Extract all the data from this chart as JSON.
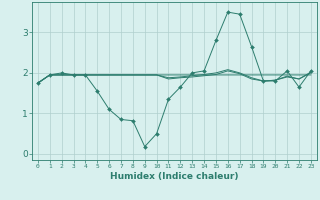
{
  "xlabel": "Humidex (Indice chaleur)",
  "x": [
    0,
    1,
    2,
    3,
    4,
    5,
    6,
    7,
    8,
    9,
    10,
    11,
    12,
    13,
    14,
    15,
    16,
    17,
    18,
    19,
    20,
    21,
    22,
    23
  ],
  "line1": [
    1.75,
    1.95,
    2.0,
    1.95,
    1.95,
    1.55,
    1.1,
    0.85,
    0.82,
    0.18,
    0.5,
    1.35,
    1.65,
    2.0,
    2.05,
    2.8,
    3.5,
    3.45,
    2.65,
    1.8,
    1.8,
    2.05,
    1.65,
    2.05
  ],
  "line2": [
    1.75,
    1.95,
    1.95,
    1.95,
    1.95,
    1.95,
    1.95,
    1.95,
    1.95,
    1.95,
    1.95,
    1.95,
    1.95,
    1.95,
    1.95,
    1.95,
    1.95,
    1.95,
    1.95,
    1.95,
    1.95,
    1.95,
    1.95,
    1.95
  ],
  "line3": [
    1.75,
    1.95,
    1.95,
    1.95,
    1.95,
    1.95,
    1.95,
    1.95,
    1.95,
    1.95,
    1.95,
    1.85,
    1.88,
    1.9,
    1.93,
    1.96,
    2.05,
    1.98,
    1.85,
    1.8,
    1.82,
    1.9,
    1.85,
    2.0
  ],
  "line4": [
    1.75,
    1.95,
    1.95,
    1.95,
    1.95,
    1.95,
    1.95,
    1.95,
    1.95,
    1.95,
    1.95,
    1.88,
    1.9,
    1.93,
    1.96,
    2.0,
    2.08,
    2.0,
    1.88,
    1.8,
    1.82,
    1.92,
    1.85,
    2.02
  ],
  "line_color": "#2d7d6e",
  "bg_color": "#d8f0ee",
  "grid_color": "#b0d0ce",
  "ylim": [
    -0.15,
    3.75
  ],
  "yticks": [
    0,
    1,
    2,
    3
  ],
  "xlim": [
    -0.5,
    23.5
  ]
}
